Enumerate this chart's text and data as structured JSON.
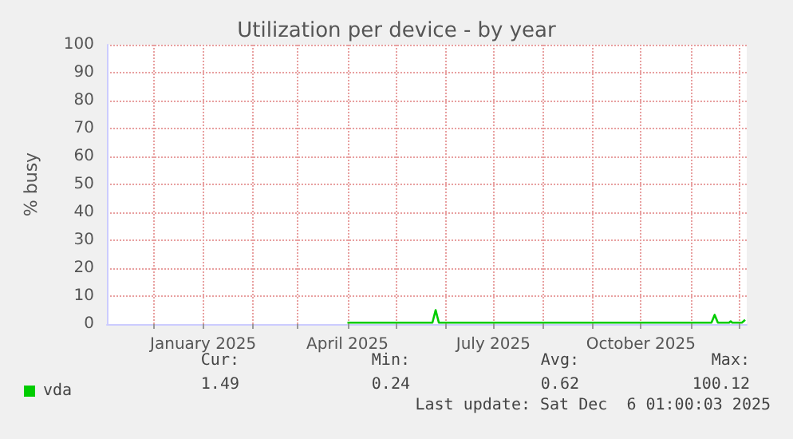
{
  "chart_data": {
    "type": "line",
    "title": "Utilization per device - by year",
    "ylabel": "% busy",
    "xlim": [
      "2024-11-02",
      "2025-12-06"
    ],
    "xticks": [
      {
        "value": "2024-12-01",
        "label": null
      },
      {
        "value": "2025-01-01",
        "label": "January 2025"
      },
      {
        "value": "2025-02-01",
        "label": null
      },
      {
        "value": "2025-03-01",
        "label": null
      },
      {
        "value": "2025-04-01",
        "label": "April 2025"
      },
      {
        "value": "2025-05-01",
        "label": null
      },
      {
        "value": "2025-06-01",
        "label": null
      },
      {
        "value": "2025-07-01",
        "label": "July 2025"
      },
      {
        "value": "2025-08-01",
        "label": null
      },
      {
        "value": "2025-09-01",
        "label": null
      },
      {
        "value": "2025-10-01",
        "label": "October 2025"
      },
      {
        "value": "2025-11-01",
        "label": null
      },
      {
        "value": "2025-12-01",
        "label": null
      }
    ],
    "ylim": [
      0,
      100
    ],
    "yticks": [
      0,
      10,
      20,
      30,
      40,
      50,
      60,
      70,
      80,
      90,
      100
    ],
    "x": [
      "2025-04-01",
      "2025-05-24",
      "2025-05-26",
      "2025-05-28",
      "2025-11-14",
      "2025-11-16",
      "2025-11-18",
      "2025-11-25",
      "2025-11-26",
      "2025-11-27",
      "2025-12-03",
      "2025-12-05"
    ],
    "series": [
      {
        "name": "vda",
        "color": "#00cc00",
        "values": [
          0.5,
          0.5,
          5,
          0.5,
          0.5,
          3.3,
          0.5,
          0.5,
          1,
          0.5,
          0.5,
          1.5
        ]
      }
    ],
    "grid": true,
    "legend": "bottom left",
    "marker": "none",
    "line_style": "solid",
    "annotations": [
      "Cur:",
      "Min:",
      "Avg:",
      "Max:",
      "1.49",
      "0.24",
      "0.62",
      "100.12",
      "Last update: Sat Dec  6 01:00:03 2025"
    ]
  }
}
